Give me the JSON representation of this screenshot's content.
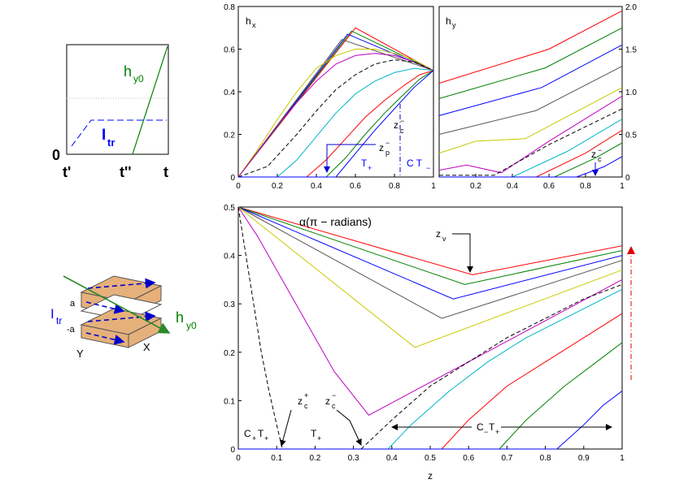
{
  "colors": {
    "red": "#ff0000",
    "green": "#008000",
    "blue": "#0000ff",
    "gray": "#555555",
    "yellow": "#c8c800",
    "magenta": "#c000c0",
    "cyan": "#00b4c8",
    "black": "#000000",
    "darkgreen": "#2a8a2a",
    "tan": "#e6b07a",
    "navy": "#0000cc"
  },
  "inset_top": {
    "ylabel0": "0",
    "t_prime": "t'",
    "t_dprime": "t''",
    "t": "t",
    "hy0": "h",
    "hy0_sub": "y0",
    "ltr": "I",
    "ltr_sub": "tr"
  },
  "inset_bottom": {
    "ltr": "I",
    "ltr_sub": "tr",
    "a": "a",
    "minus_a": "-a",
    "Y": "Y",
    "X": "X",
    "hy0": "h",
    "hy0_sub": "y0"
  },
  "annotations": {
    "hx_title": "h",
    "hx_sub": "x",
    "hy_title": "h",
    "hy_sub": "y",
    "zc_minus": "z",
    "c": "c",
    "minus": "−",
    "plus": "+",
    "zp_minus": "z",
    "p": "p",
    "T": "T",
    "CT": "C T",
    "alpha_title": "α(π − radians)",
    "zv": "z",
    "v": "v",
    "zc_plus": "z",
    "C_T": "C",
    "C_T_sub": "+",
    "C_T_T": "T",
    "C_minus_T_plus": "C",
    "zlabel": "z"
  },
  "chart_data": [
    {
      "name": "hx",
      "type": "line",
      "title": "hx",
      "xlim": [
        0,
        1
      ],
      "ylim": [
        0,
        0.8
      ],
      "xticks": [
        "0",
        "0.2",
        "0.4",
        "0.6",
        "0.8",
        "1"
      ],
      "yticks": [
        "0",
        "0.2",
        "0.4",
        "0.6",
        "0.8"
      ],
      "series": [
        {
          "name": "red",
          "color": "#ff0000",
          "dash": false,
          "x": [
            0,
            0.6,
            1
          ],
          "y": [
            0,
            0.7,
            0.5
          ]
        },
        {
          "name": "green",
          "color": "#008000",
          "dash": false,
          "x": [
            0,
            0.58,
            1
          ],
          "y": [
            0,
            0.685,
            0.5
          ]
        },
        {
          "name": "blue",
          "color": "#0000ff",
          "dash": false,
          "x": [
            0,
            0.56,
            1
          ],
          "y": [
            0,
            0.67,
            0.5
          ]
        },
        {
          "name": "gray",
          "color": "#555555",
          "dash": false,
          "x": [
            0,
            0.53,
            1
          ],
          "y": [
            0,
            0.645,
            0.5
          ]
        },
        {
          "name": "yellow",
          "color": "#c8c800",
          "dash": false,
          "x": [
            0,
            0.1,
            0.2,
            0.3,
            0.4,
            0.5,
            0.6,
            0.7,
            0.8,
            0.9,
            1
          ],
          "y": [
            0,
            0.13,
            0.27,
            0.4,
            0.51,
            0.57,
            0.6,
            0.6,
            0.58,
            0.55,
            0.5
          ]
        },
        {
          "name": "magenta",
          "color": "#c000c0",
          "dash": false,
          "x": [
            0,
            0.1,
            0.2,
            0.3,
            0.4,
            0.5,
            0.6,
            0.7,
            0.8,
            0.9,
            1
          ],
          "y": [
            0,
            0.12,
            0.24,
            0.35,
            0.45,
            0.53,
            0.57,
            0.58,
            0.57,
            0.54,
            0.5
          ]
        },
        {
          "name": "black-dashed",
          "color": "#000000",
          "dash": true,
          "x": [
            0,
            0.15,
            0.3,
            0.4,
            0.5,
            0.6,
            0.7,
            0.8,
            0.9,
            1
          ],
          "y": [
            0,
            0.05,
            0.2,
            0.31,
            0.41,
            0.48,
            0.53,
            0.55,
            0.54,
            0.5
          ]
        },
        {
          "name": "cyan",
          "color": "#00b4c8",
          "dash": false,
          "x": [
            0,
            0.2,
            0.3,
            0.4,
            0.5,
            0.6,
            0.7,
            0.8,
            0.9,
            1
          ],
          "y": [
            0,
            0.0,
            0.08,
            0.19,
            0.3,
            0.39,
            0.45,
            0.49,
            0.51,
            0.5
          ]
        },
        {
          "name": "red2",
          "color": "#ff0000",
          "dash": false,
          "x": [
            0,
            0.35,
            0.45,
            0.55,
            0.65,
            0.75,
            0.85,
            0.93,
            1
          ],
          "y": [
            0,
            0,
            0.08,
            0.18,
            0.28,
            0.36,
            0.43,
            0.48,
            0.5
          ]
        },
        {
          "name": "green2",
          "color": "#008000",
          "dash": false,
          "x": [
            0,
            0.45,
            0.55,
            0.65,
            0.75,
            0.85,
            0.93,
            1
          ],
          "y": [
            0,
            0,
            0.09,
            0.2,
            0.3,
            0.39,
            0.46,
            0.5
          ]
        },
        {
          "name": "blue2",
          "color": "#0000ff",
          "dash": false,
          "x": [
            0,
            0.5,
            0.6,
            0.7,
            0.8,
            0.9,
            1
          ],
          "y": [
            0,
            0,
            0.11,
            0.22,
            0.32,
            0.42,
            0.5
          ]
        }
      ]
    },
    {
      "name": "hy",
      "type": "line",
      "title": "hy",
      "xlim": [
        0,
        1
      ],
      "ylim": [
        0,
        2
      ],
      "xticks": [
        "0.2",
        "0.4",
        "0.6",
        "0.8",
        "1"
      ],
      "yticks": [
        "0",
        "0.5",
        "1.0",
        "1.5",
        "2.0"
      ],
      "series": [
        {
          "name": "red",
          "color": "#ff0000",
          "dash": false,
          "x": [
            0,
            0.6,
            1
          ],
          "y": [
            1.1,
            1.5,
            1.95
          ]
        },
        {
          "name": "green",
          "color": "#008000",
          "dash": false,
          "x": [
            0,
            0.58,
            1
          ],
          "y": [
            0.92,
            1.28,
            1.75
          ]
        },
        {
          "name": "blue",
          "color": "#0000ff",
          "dash": false,
          "x": [
            0,
            0.56,
            1
          ],
          "y": [
            0.72,
            1.05,
            1.55
          ]
        },
        {
          "name": "gray",
          "color": "#555555",
          "dash": false,
          "x": [
            0,
            0.53,
            1
          ],
          "y": [
            0.5,
            0.78,
            1.3
          ]
        },
        {
          "name": "yellow",
          "color": "#c8c800",
          "dash": false,
          "x": [
            0,
            0.2,
            0.47,
            1
          ],
          "y": [
            0.28,
            0.42,
            0.45,
            1.05
          ]
        },
        {
          "name": "magenta",
          "color": "#c000c0",
          "dash": false,
          "x": [
            0,
            0.15,
            0.34,
            0.6,
            1
          ],
          "y": [
            0.08,
            0.14,
            0.05,
            0.42,
            0.95
          ]
        },
        {
          "name": "black-dashed",
          "color": "#000000",
          "dash": true,
          "x": [
            0,
            0.15,
            0.3,
            0.6,
            1
          ],
          "y": [
            0.02,
            0.02,
            0.02,
            0.38,
            0.8
          ]
        },
        {
          "name": "cyan",
          "color": "#00b4c8",
          "dash": false,
          "x": [
            0,
            0.4,
            0.7,
            1
          ],
          "y": [
            0,
            0,
            0.3,
            0.68
          ]
        },
        {
          "name": "red2",
          "color": "#ff0000",
          "dash": false,
          "x": [
            0,
            0.53,
            0.8,
            1
          ],
          "y": [
            0,
            0,
            0.28,
            0.55
          ]
        },
        {
          "name": "green2",
          "color": "#008000",
          "dash": false,
          "x": [
            0,
            0.63,
            0.85,
            1
          ],
          "y": [
            0,
            0,
            0.22,
            0.4
          ]
        },
        {
          "name": "blue2",
          "color": "#0000ff",
          "dash": false,
          "x": [
            0,
            0.75,
            0.9,
            1
          ],
          "y": [
            0,
            0,
            0.12,
            0.24
          ]
        }
      ]
    },
    {
      "name": "alpha",
      "type": "line",
      "title": "α(π − radians)",
      "xlabel": "z",
      "xlim": [
        0,
        1
      ],
      "ylim": [
        0,
        0.5
      ],
      "xticks": [
        "0",
        "0.1",
        "0.2",
        "0.3",
        "0.4",
        "0.5",
        "0.6",
        "0.7",
        "0.8",
        "0.9",
        "1"
      ],
      "yticks": [
        "0",
        "0.1",
        "0.2",
        "0.3",
        "0.4",
        "0.5"
      ],
      "series": [
        {
          "name": "red",
          "color": "#ff0000",
          "dash": false,
          "x": [
            0,
            0.61,
            1
          ],
          "y": [
            0.5,
            0.36,
            0.42
          ]
        },
        {
          "name": "green",
          "color": "#008000",
          "dash": false,
          "x": [
            0,
            0.59,
            1
          ],
          "y": [
            0.5,
            0.34,
            0.41
          ]
        },
        {
          "name": "blue",
          "color": "#0000ff",
          "dash": false,
          "x": [
            0,
            0.56,
            1
          ],
          "y": [
            0.5,
            0.31,
            0.4
          ]
        },
        {
          "name": "gray",
          "color": "#555555",
          "dash": false,
          "x": [
            0,
            0.53,
            1
          ],
          "y": [
            0.5,
            0.27,
            0.39
          ]
        },
        {
          "name": "yellow",
          "color": "#c8c800",
          "dash": false,
          "x": [
            0,
            0.46,
            1
          ],
          "y": [
            0.5,
            0.21,
            0.37
          ]
        },
        {
          "name": "magenta",
          "color": "#c000c0",
          "dash": false,
          "x": [
            0,
            0.05,
            0.1,
            0.15,
            0.2,
            0.25,
            0.3,
            0.34,
            1
          ],
          "y": [
            0.5,
            0.44,
            0.37,
            0.3,
            0.23,
            0.16,
            0.11,
            0.07,
            0.35
          ]
        },
        {
          "name": "black-dashed-left",
          "color": "#000000",
          "dash": true,
          "x": [
            0,
            0.02,
            0.04,
            0.06,
            0.08,
            0.1,
            0.115
          ],
          "y": [
            0.5,
            0.4,
            0.3,
            0.2,
            0.12,
            0.05,
            0
          ]
        },
        {
          "name": "black-dashed-right",
          "color": "#000000",
          "dash": true,
          "x": [
            0.32,
            0.4,
            0.5,
            0.6,
            0.7,
            0.8,
            0.9,
            1
          ],
          "y": [
            0,
            0.06,
            0.13,
            0.18,
            0.23,
            0.27,
            0.31,
            0.34
          ]
        },
        {
          "name": "cyan",
          "color": "#00b4c8",
          "dash": false,
          "x": [
            0,
            0.39,
            0.45,
            0.55,
            0.65,
            0.75,
            0.85,
            1
          ],
          "y": [
            0,
            0,
            0.05,
            0.12,
            0.18,
            0.23,
            0.27,
            0.33
          ]
        },
        {
          "name": "red2",
          "color": "#ff0000",
          "dash": false,
          "x": [
            0,
            0.53,
            0.6,
            0.7,
            0.8,
            0.9,
            1
          ],
          "y": [
            0,
            0,
            0.06,
            0.13,
            0.18,
            0.23,
            0.28
          ]
        },
        {
          "name": "green2",
          "color": "#008000",
          "dash": false,
          "x": [
            0,
            0.68,
            0.75,
            0.85,
            0.95,
            1
          ],
          "y": [
            0,
            0,
            0.06,
            0.13,
            0.19,
            0.22
          ]
        },
        {
          "name": "blue2",
          "color": "#0000ff",
          "dash": false,
          "x": [
            0,
            0.83,
            0.9,
            0.95,
            1
          ],
          "y": [
            0,
            0,
            0.05,
            0.09,
            0.12
          ]
        }
      ]
    }
  ]
}
